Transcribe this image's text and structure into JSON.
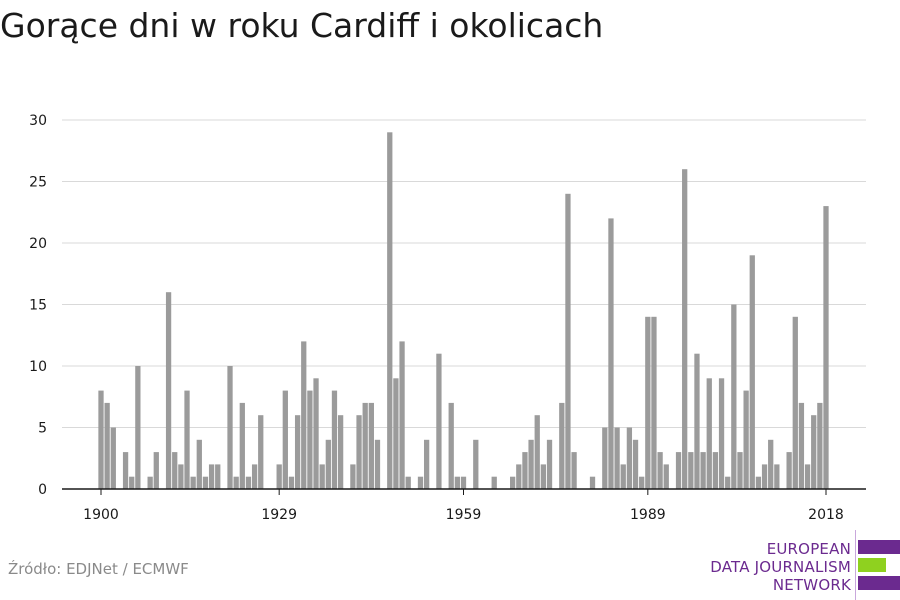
{
  "title": "Gorące dni w roku Cardiff i okolicach",
  "source": "Źródło: EDJNet / ECMWF",
  "logo": {
    "line1": "EUROPEAN",
    "line2": "DATA JOURNALISM",
    "line3": "NETWORK",
    "colors": {
      "purple": "#6b2a8f",
      "green": "#8fd11f"
    }
  },
  "chart_data": {
    "type": "bar",
    "title": "Gorące dni w roku Cardiff i okolicach",
    "xlabel": "",
    "ylabel": "",
    "bar_color": "#9b9b9b",
    "grid": true,
    "ylim": [
      0,
      30
    ],
    "yticks": [
      0,
      5,
      10,
      15,
      20,
      25,
      30
    ],
    "xticks": [
      1900,
      1929,
      1959,
      1989,
      2018
    ],
    "x": [
      1900,
      1901,
      1902,
      1903,
      1904,
      1905,
      1906,
      1907,
      1908,
      1909,
      1910,
      1911,
      1912,
      1913,
      1914,
      1915,
      1916,
      1917,
      1918,
      1919,
      1920,
      1921,
      1922,
      1923,
      1924,
      1925,
      1926,
      1927,
      1928,
      1929,
      1930,
      1931,
      1932,
      1933,
      1934,
      1935,
      1936,
      1937,
      1938,
      1939,
      1940,
      1941,
      1942,
      1943,
      1944,
      1945,
      1946,
      1947,
      1948,
      1949,
      1950,
      1951,
      1952,
      1953,
      1954,
      1955,
      1956,
      1957,
      1958,
      1959,
      1960,
      1961,
      1962,
      1963,
      1964,
      1965,
      1966,
      1967,
      1968,
      1969,
      1970,
      1971,
      1972,
      1973,
      1974,
      1975,
      1976,
      1977,
      1978,
      1979,
      1980,
      1981,
      1982,
      1983,
      1984,
      1985,
      1986,
      1987,
      1988,
      1989,
      1990,
      1991,
      1992,
      1993,
      1994,
      1995,
      1996,
      1997,
      1998,
      1999,
      2000,
      2001,
      2002,
      2003,
      2004,
      2005,
      2006,
      2007,
      2008,
      2009,
      2010,
      2011,
      2012,
      2013,
      2014,
      2015,
      2016,
      2017,
      2018
    ],
    "values": [
      8,
      7,
      5,
      0,
      3,
      1,
      10,
      0,
      1,
      3,
      0,
      16,
      3,
      2,
      8,
      1,
      4,
      1,
      2,
      2,
      0,
      10,
      1,
      7,
      1,
      2,
      6,
      0,
      0,
      2,
      8,
      1,
      6,
      12,
      8,
      9,
      2,
      4,
      8,
      6,
      0,
      2,
      6,
      7,
      7,
      4,
      0,
      29,
      9,
      12,
      1,
      0,
      1,
      4,
      0,
      11,
      0,
      7,
      1,
      1,
      0,
      4,
      0,
      0,
      1,
      0,
      0,
      1,
      2,
      3,
      4,
      6,
      2,
      4,
      0,
      7,
      24,
      3,
      0,
      0,
      1,
      0,
      5,
      22,
      5,
      2,
      5,
      4,
      1,
      14,
      14,
      3,
      2,
      0,
      3,
      26,
      3,
      11,
      3,
      9,
      3,
      9,
      1,
      15,
      3,
      8,
      19,
      1,
      2,
      4,
      2,
      0,
      3,
      14,
      7,
      2,
      6,
      7,
      23
    ]
  }
}
